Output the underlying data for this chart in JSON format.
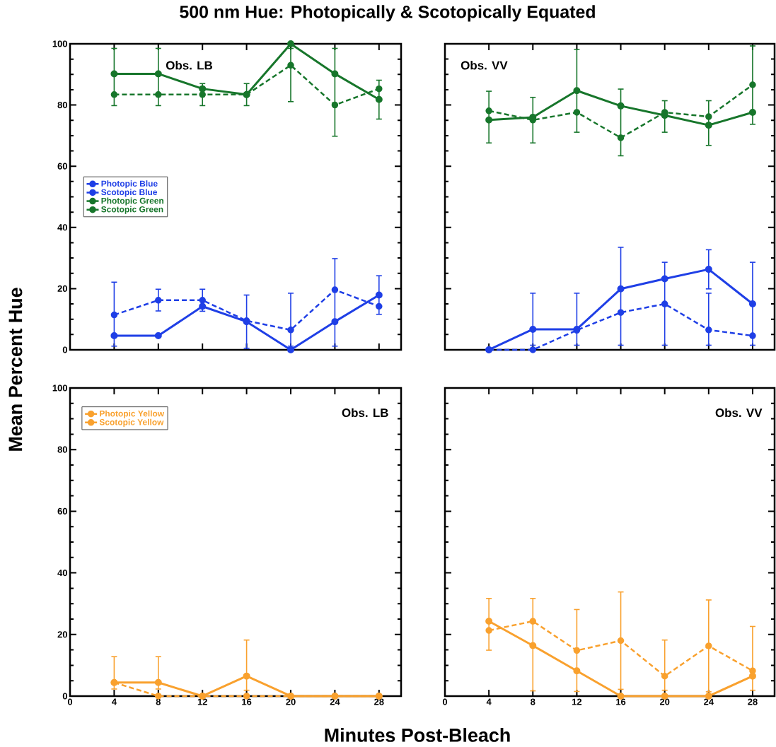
{
  "chart_data": [
    {
      "type": "line",
      "title": "500 nm Hue:  Photopically & Scotopically Equated",
      "ylabel": "Mean Percent Hue",
      "annotations": [
        "Obs. LB"
      ],
      "x": [
        4,
        8,
        12,
        16,
        20,
        24,
        28
      ],
      "xlim": [
        0,
        30
      ],
      "ylim": [
        0,
        100
      ],
      "xticks": [
        0,
        4,
        8,
        12,
        16,
        20,
        24,
        28
      ],
      "yticks": [
        0,
        20,
        40,
        60,
        80,
        100
      ],
      "tick_labels": "y",
      "grid": false,
      "legend": "left",
      "marker": "circle",
      "series": [
        {
          "name": "Photopic Blue",
          "color": "#1f3fe6",
          "line_style": "solid",
          "values": [
            4.6,
            4.6,
            14.2,
            9.2,
            0,
            9.2,
            17.9
          ],
          "errors": [
            null,
            null,
            null,
            [
              0.5,
              17.9
            ],
            null,
            null,
            [
              11.6,
              24.2
            ]
          ]
        },
        {
          "name": "Scotopic Blue",
          "color": "#1f3fe6",
          "line_style": "dashed",
          "values": [
            11.4,
            16.2,
            16.2,
            9.5,
            6.5,
            19.6,
            14.2
          ],
          "errors": [
            [
              1.2,
              22.1
            ],
            [
              12.7,
              19.8
            ],
            [
              12.6,
              19.8
            ],
            null,
            [
              1.2,
              18.5
            ],
            [
              1.2,
              29.8
            ],
            null
          ]
        },
        {
          "name": "Photopic Green",
          "color": "#17762b",
          "line_style": "solid",
          "values": [
            90.2,
            90.2,
            85.3,
            83.4,
            100,
            90.2,
            81.8
          ],
          "errors": [
            [
              79.8,
              98.5
            ],
            [
              79.8,
              98.5
            ],
            null,
            null,
            null,
            null,
            [
              75.4,
              88.1
            ]
          ]
        },
        {
          "name": "Scotopic Green",
          "color": "#17762b",
          "line_style": "dashed",
          "values": [
            83.4,
            83.4,
            83.4,
            83.4,
            93,
            80,
            85.3
          ],
          "errors": [
            null,
            null,
            [
              79.8,
              87
            ],
            [
              79.8,
              87
            ],
            [
              81.1,
              98.5
            ],
            [
              69.8,
              98.5
            ],
            null
          ]
        }
      ]
    },
    {
      "type": "line",
      "annotations": [
        "Obs. VV"
      ],
      "x": [
        4,
        8,
        12,
        16,
        20,
        24,
        28
      ],
      "xlim": [
        0,
        30
      ],
      "ylim": [
        0,
        100
      ],
      "xticks": [
        0,
        4,
        8,
        12,
        16,
        20,
        24,
        28
      ],
      "yticks": [
        0,
        20,
        40,
        60,
        80,
        100
      ],
      "tick_labels": false,
      "grid": false,
      "marker": "circle",
      "series": [
        {
          "color": "#1f3fe6",
          "line_style": "solid",
          "values": [
            0,
            6.7,
            6.7,
            19.9,
            23.2,
            26.3,
            15.0
          ],
          "errors": [
            null,
            [
              1.5,
              18.5
            ],
            [
              1.5,
              18.5
            ],
            [
              1.5,
              33.5
            ],
            null,
            [
              19.9,
              32.7
            ],
            [
              1.5,
              28.6
            ]
          ]
        },
        {
          "color": "#1f3fe6",
          "line_style": "dashed",
          "values": [
            0,
            0,
            6.4,
            12.2,
            15.0,
            6.5,
            4.6
          ],
          "errors": [
            null,
            null,
            null,
            null,
            [
              1.5,
              28.6
            ],
            [
              1.5,
              18.5
            ],
            null
          ]
        },
        {
          "color": "#17762b",
          "line_style": "solid",
          "values": [
            75.1,
            76,
            84.7,
            79.7,
            76.6,
            73.4,
            77.6
          ],
          "errors": [
            [
              67.6,
              84.5
            ],
            null,
            [
              71.1,
              98.2
            ],
            null,
            [
              71.1,
              81.4
            ],
            [
              66.8,
              81.4
            ],
            null
          ]
        },
        {
          "color": "#17762b",
          "line_style": "dashed",
          "values": [
            78.1,
            75.1,
            77.6,
            69.3,
            77.6,
            76.2,
            86.6
          ],
          "errors": [
            null,
            [
              67.6,
              82.5
            ],
            null,
            [
              63.4,
              85.2
            ],
            null,
            null,
            [
              73.7,
              99.3
            ]
          ]
        }
      ]
    },
    {
      "type": "line",
      "xlabel": "Minutes Post-Bleach",
      "annotations": [
        "Obs. LB"
      ],
      "x": [
        4,
        8,
        12,
        16,
        20,
        24,
        28
      ],
      "xlim": [
        0,
        30
      ],
      "ylim": [
        0,
        100
      ],
      "xticks": [
        0,
        4,
        8,
        12,
        16,
        20,
        24,
        28
      ],
      "yticks": [
        0,
        20,
        40,
        60,
        80,
        100
      ],
      "grid": false,
      "legend": "top left",
      "marker": "circle",
      "series": [
        {
          "name": "Photopic Yellow",
          "color": "#f9a12e",
          "line_style": "solid",
          "values": [
            4.4,
            4.4,
            0,
            6.5,
            0,
            0,
            0
          ],
          "errors": [
            [
              2.3,
              12.8
            ],
            [
              2.3,
              12.8
            ],
            null,
            [
              1.9,
              18.2
            ],
            null,
            null,
            null
          ]
        },
        {
          "name": "Scotopic Yellow",
          "color": "#f9a12e",
          "line_style": "dashed",
          "values": [
            4.4,
            0,
            0,
            0,
            0,
            0,
            0
          ]
        }
      ]
    },
    {
      "type": "line",
      "annotations": [
        "Obs. VV"
      ],
      "x": [
        4,
        8,
        12,
        16,
        20,
        24,
        28
      ],
      "xlim": [
        0,
        30
      ],
      "ylim": [
        0,
        100
      ],
      "xticks": [
        0,
        4,
        8,
        12,
        16,
        20,
        24,
        28
      ],
      "yticks": [
        0,
        20,
        40,
        60,
        80,
        100
      ],
      "tick_labels": "x",
      "grid": false,
      "marker": "circle",
      "series": [
        {
          "color": "#f9a12e",
          "line_style": "solid",
          "values": [
            24.3,
            16.4,
            8.2,
            0,
            0,
            0,
            6.5
          ],
          "errors": [
            [
              14.9,
              31.7
            ],
            [
              1.7,
              31.7
            ],
            null,
            null,
            null,
            null,
            null
          ]
        },
        {
          "color": "#f9a12e",
          "line_style": "dashed",
          "values": [
            21.3,
            24.3,
            14.8,
            18.0,
            6.5,
            16.3,
            8.2
          ],
          "errors": [
            null,
            null,
            [
              1.5,
              28.1
            ],
            [
              2.2,
              33.8
            ],
            [
              1.9,
              18.2
            ],
            [
              1.4,
              31.2
            ],
            [
              1.9,
              22.6
            ]
          ]
        }
      ]
    }
  ]
}
